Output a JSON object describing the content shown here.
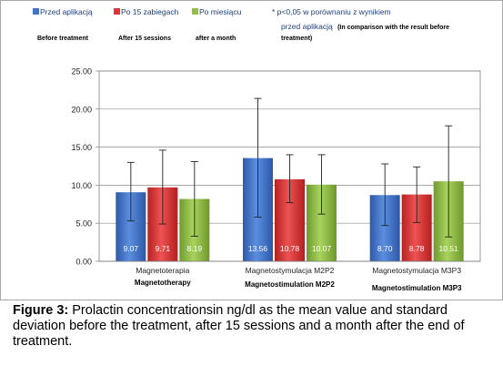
{
  "chart_data": {
    "type": "bar",
    "categories": [
      "Magnetoterapia",
      "Magnetostymulacja M2P2",
      "Magnetostymulacja M3P3"
    ],
    "category_sublabels": [
      "Magnetotherapy",
      "Magnetostimulation M2P2",
      "Magnetostimulation M3P3"
    ],
    "series": [
      {
        "name": "Przed aplikacją",
        "sublabel": "Before treatment",
        "color": "#4472c4",
        "values": [
          9.07,
          13.56,
          8.7
        ],
        "err_low": [
          5.3,
          5.8,
          4.7
        ],
        "err_high": [
          13.0,
          21.4,
          12.8
        ],
        "value_labels": [
          "9.07",
          "13.56",
          "8.70"
        ]
      },
      {
        "name": "Po 15 zabiegach",
        "sublabel": "After 15 sessions",
        "color": "#e03434",
        "values": [
          9.71,
          10.78,
          8.78
        ],
        "err_low": [
          4.9,
          7.7,
          5.1
        ],
        "err_high": [
          14.6,
          14.0,
          12.4
        ],
        "value_labels": [
          "9.71",
          "10.78",
          "8.78"
        ]
      },
      {
        "name": "Po miesiącu",
        "sublabel": "after a month",
        "color": "#92c047",
        "values": [
          8.19,
          10.07,
          10.51
        ],
        "err_low": [
          3.3,
          6.2,
          3.2
        ],
        "err_high": [
          13.1,
          14.0,
          17.8
        ],
        "value_labels": [
          "8.19",
          "10.07",
          "10.51"
        ]
      }
    ],
    "ylim": [
      0,
      25
    ],
    "yticks": [
      "0.00",
      "5.00",
      "10.00",
      "15.00",
      "20.00",
      "25.00"
    ],
    "grid": true,
    "legend_position": "top",
    "note_line1": "* p<0,05 w porównaniu z wynikiem",
    "note_line2": "przed aplikacją",
    "note_line2_en": "(In comparison with the result before",
    "note_line3": "treatment)"
  },
  "caption": {
    "label": "Figure 3:",
    "text": "Prolactin concentrationsin ng/dl as the mean value and standard deviation before the treatment, after 15 sessions and a month after the end of treatment."
  }
}
